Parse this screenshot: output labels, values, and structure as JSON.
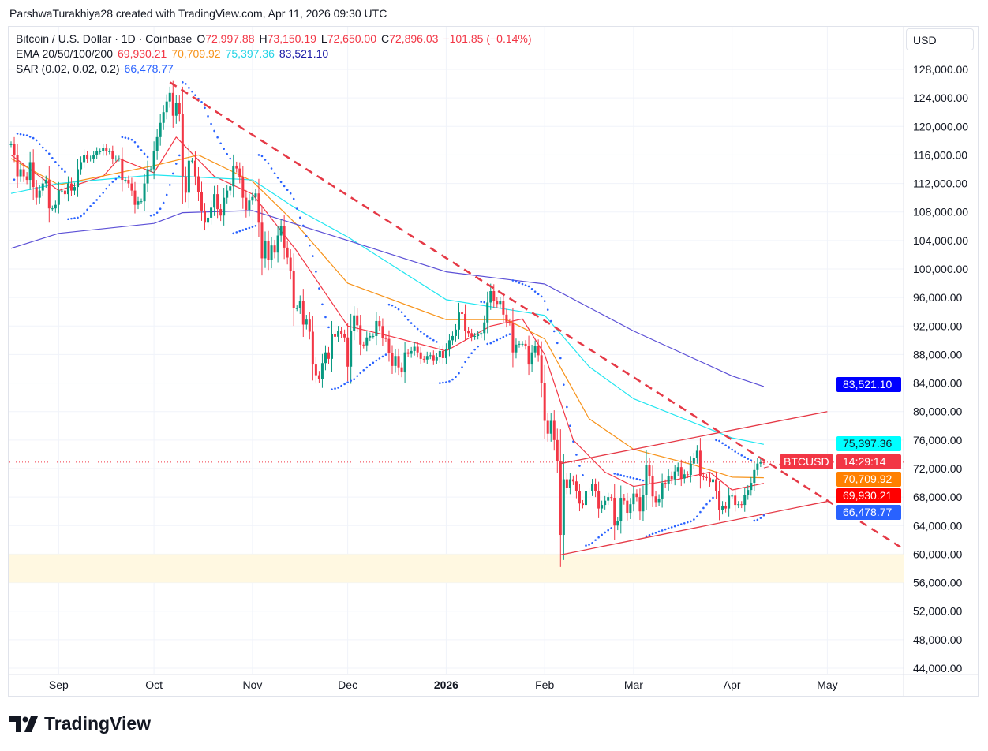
{
  "credit": "ParshwaTurakhiya28 created with TradingView.com, Apr 11, 2026 09:30 UTC",
  "symbol": {
    "title": "Bitcoin / U.S. Dollar · 1D · Coinbase",
    "o_label": "O",
    "open": "72,997.88",
    "h_label": "H",
    "high": "73,150.19",
    "l_label": "L",
    "low": "72,650.00",
    "c_label": "C",
    "close": "72,896.03",
    "change": "−101.85 (−0.14%)"
  },
  "ema": {
    "label": "EMA 20/50/100/200",
    "v20": "69,930.21",
    "v50": "70,709.92",
    "v100": "75,397.36",
    "v200": "83,521.10"
  },
  "sar": {
    "label": "SAR (0.02, 0.02, 0.2)",
    "value": "66,478.77"
  },
  "currency": "USD",
  "price_tags": {
    "ema200": "83,521.10",
    "ema100": "75,397.36",
    "ticker": "BTCUSD",
    "countdown": "14:29:14",
    "ema50": "70,709.92",
    "ema20": "69,930.21",
    "sar": "66,478.77"
  },
  "logo_text": "TradingView",
  "colors": {
    "up": "#089981",
    "down": "#f23645",
    "ema20": "#f23645",
    "ema50": "#f7931a",
    "ema100": "#22e6f0",
    "ema200": "#5b4fd6",
    "sar": "#2962ff",
    "trendline": "#e53946",
    "zone": "#fff8e1"
  },
  "chart_data": {
    "type": "candlestick",
    "y_ticks": [
      "128,000.00",
      "124,000.00",
      "120,000.00",
      "116,000.00",
      "112,000.00",
      "108,000.00",
      "104,000.00",
      "100,000.00",
      "96,000.00",
      "92,000.00",
      "88,000.00",
      "84,000.00",
      "80,000.00",
      "76,000.00",
      "72,000.00",
      "68,000.00",
      "64,000.00",
      "60,000.00",
      "56,000.00",
      "52,000.00",
      "48,000.00",
      "44,000.00"
    ],
    "y_tick_values": [
      128000,
      124000,
      120000,
      116000,
      112000,
      108000,
      104000,
      100000,
      96000,
      92000,
      88000,
      84000,
      80000,
      76000,
      72000,
      68000,
      64000,
      60000,
      56000,
      52000,
      48000,
      44000
    ],
    "ylim": [
      43000,
      131000
    ],
    "x_ticks": [
      {
        "label": "Sep",
        "date": "2025-09-01"
      },
      {
        "label": "Oct",
        "date": "2025-10-01"
      },
      {
        "label": "Nov",
        "date": "2025-11-01"
      },
      {
        "label": "Dec",
        "date": "2025-12-01"
      },
      {
        "label": "2026",
        "date": "2026-01-01",
        "bold": true
      },
      {
        "label": "Feb",
        "date": "2026-02-01"
      },
      {
        "label": "Mar",
        "date": "2026-03-01"
      },
      {
        "label": "Apr",
        "date": "2026-04-01"
      },
      {
        "label": "May",
        "date": "2026-05-01"
      }
    ],
    "xlim": [
      "2025-08-17",
      "2026-05-25"
    ],
    "grid": true,
    "last_price": 72896.03,
    "daily_closes_thousands": [
      {
        "month": "2025-08",
        "first_day": 17,
        "closes": [
          117.5,
          116,
          113,
          114,
          113,
          112.5,
          115,
          111.5,
          110,
          111,
          112,
          112.5,
          108.5,
          108.5,
          109
        ]
      },
      {
        "month": "2025-09",
        "first_day": 1,
        "closes": [
          111,
          111,
          110.5,
          112,
          111,
          111.5,
          114,
          115,
          116,
          115.5,
          115.5,
          116,
          116.5,
          116.5,
          117,
          116.5,
          116.5,
          115.5,
          115.5,
          115.5,
          112.5,
          112.5,
          112,
          111,
          109,
          109.5,
          109.5,
          112,
          114,
          114
        ]
      },
      {
        "month": "2025-10",
        "first_day": 1,
        "closes": [
          116.5,
          118.5,
          120.5,
          122,
          123.5,
          124.7,
          121.5,
          123.3,
          121.7,
          113,
          110.7,
          115.2,
          115.2,
          113,
          110.8,
          108.2,
          106.5,
          107.2,
          108.6,
          110.5,
          108.4,
          107.5,
          110,
          111,
          111.6,
          114.5,
          114.1,
          112.9,
          110,
          108.3,
          109.6
        ]
      },
      {
        "month": "2025-11",
        "first_day": 1,
        "closes": [
          110.1,
          110.6,
          106.5,
          101.5,
          103.9,
          101.3,
          103.3,
          102.3,
          104.7,
          106,
          103,
          101.6,
          99.7,
          94.5,
          94.5,
          95.5,
          92.2,
          92.9,
          91.2,
          86.6,
          85.1,
          84.6,
          86.8,
          88.3,
          87.4,
          90.9,
          90.5,
          91.3,
          90.9,
          90.4
        ]
      },
      {
        "month": "2025-12",
        "first_day": 1,
        "closes": [
          86.3,
          91.3,
          93.5,
          92.1,
          89.4,
          89.3,
          90.4,
          90.6,
          90.6,
          92.7,
          92,
          90.3,
          90.2,
          88.2,
          86.4,
          87.8,
          86.2,
          85.5,
          88.3,
          88.1,
          88.5,
          89.1,
          88.3,
          87.4,
          87.3,
          87.8,
          87.9,
          87.2,
          87.6,
          88.5,
          87.5
        ]
      },
      {
        "month": "2026-01",
        "first_day": 1,
        "closes": [
          88.7,
          90,
          90.6,
          91.5,
          93.9,
          93.7,
          91.3,
          91,
          90.5,
          90.6,
          90.8,
          91,
          92.5,
          95.3,
          96.9,
          95.5,
          95.1,
          95.5,
          93.6,
          92.6,
          92.5,
          88.3,
          89.4,
          89.5,
          89.5,
          89.2,
          86.6,
          88.3,
          89.2,
          87.9,
          84
        ]
      },
      {
        "month": "2026-02",
        "first_day": 1,
        "closes": [
          78.7,
          76.9,
          78.7,
          76,
          73,
          62.7,
          70.5,
          69.3,
          70.5,
          70.2,
          68.8,
          67.1,
          66.9,
          68.8,
          68.9,
          69.8,
          68.8,
          66.4,
          66.9,
          67.5,
          68,
          67.9,
          64,
          64.6,
          67.9,
          67.5,
          65.8,
          67
        ]
      },
      {
        "month": "2026-03",
        "first_day": 1,
        "closes": [
          68.5,
          68,
          66,
          68.3,
          72.5,
          70.9,
          68.1,
          67.3,
          67.8,
          70,
          69.8,
          71,
          70.5,
          71.6,
          72.2,
          70.6,
          71.2,
          71.1,
          72.7,
          73.5,
          74.5,
          71,
          70.8,
          70.7,
          70.1,
          70.5,
          68.8,
          66.2,
          66.8,
          66.4,
          68.2
        ]
      },
      {
        "month": "2026-04",
        "first_day": 1,
        "closes": [
          68.2,
          66.9,
          67,
          66.9,
          68.3,
          69,
          70,
          71.8,
          72.7,
          72.9,
          72.896
        ]
      }
    ],
    "ema_series_thousands": {
      "ema20": [
        [
          "2025-08-17",
          116
        ],
        [
          "2025-09-01",
          111
        ],
        [
          "2025-09-15",
          113
        ],
        [
          "2025-09-20",
          115.5
        ],
        [
          "2025-10-01",
          113.5
        ],
        [
          "2025-10-08",
          118.5
        ],
        [
          "2025-10-20",
          113
        ],
        [
          "2025-11-01",
          110.5
        ],
        [
          "2025-11-15",
          102.5
        ],
        [
          "2025-12-01",
          92
        ],
        [
          "2025-12-15",
          90.5
        ],
        [
          "2026-01-01",
          88.5
        ],
        [
          "2026-01-15",
          92
        ],
        [
          "2026-01-25",
          93
        ],
        [
          "2026-02-01",
          88
        ],
        [
          "2026-02-10",
          76
        ],
        [
          "2026-02-20",
          71.5
        ],
        [
          "2026-03-01",
          69.5
        ],
        [
          "2026-03-15",
          70.5
        ],
        [
          "2026-03-25",
          71.5
        ],
        [
          "2026-04-01",
          69
        ],
        [
          "2026-04-11",
          69.93
        ]
      ],
      "ema50": [
        [
          "2025-08-17",
          115.5
        ],
        [
          "2025-09-01",
          111.8
        ],
        [
          "2025-10-01",
          114.5
        ],
        [
          "2025-10-15",
          116
        ],
        [
          "2025-11-01",
          112.3
        ],
        [
          "2025-11-15",
          106.2
        ],
        [
          "2025-12-01",
          98
        ],
        [
          "2025-12-15",
          95.7
        ],
        [
          "2026-01-01",
          92.9
        ],
        [
          "2026-01-20",
          92.9
        ],
        [
          "2026-02-01",
          90.2
        ],
        [
          "2026-02-15",
          79
        ],
        [
          "2026-03-01",
          74.7
        ],
        [
          "2026-03-20",
          72.5
        ],
        [
          "2026-04-01",
          70.8
        ],
        [
          "2026-04-11",
          70.71
        ]
      ],
      "ema100": [
        [
          "2025-08-17",
          110.6
        ],
        [
          "2025-09-01",
          112
        ],
        [
          "2025-10-01",
          113.2
        ],
        [
          "2025-11-01",
          112.5
        ],
        [
          "2025-11-15",
          108.4
        ],
        [
          "2025-12-01",
          104.5
        ],
        [
          "2026-01-01",
          95.7
        ],
        [
          "2026-02-01",
          93.5
        ],
        [
          "2026-02-15",
          86.3
        ],
        [
          "2026-03-01",
          81.8
        ],
        [
          "2026-04-01",
          76.3
        ],
        [
          "2026-04-11",
          75.4
        ]
      ],
      "ema200": [
        [
          "2025-08-17",
          102.9
        ],
        [
          "2025-09-01",
          105
        ],
        [
          "2025-10-01",
          106.4
        ],
        [
          "2025-10-10",
          107.9
        ],
        [
          "2025-11-01",
          108.2
        ],
        [
          "2025-12-01",
          104
        ],
        [
          "2026-01-01",
          99.6
        ],
        [
          "2026-02-01",
          97.9
        ],
        [
          "2026-03-01",
          91.3
        ],
        [
          "2026-04-01",
          85
        ],
        [
          "2026-04-11",
          83.52
        ]
      ]
    },
    "drawings": {
      "downtrend_line": [
        [
          "2025-10-06",
          126.2
        ],
        [
          "2026-05-24",
          61
        ]
      ],
      "channel_upper": [
        [
          "2026-02-06",
          72.7
        ],
        [
          "2026-05-01",
          80
        ]
      ],
      "channel_lower": [
        [
          "2026-02-06",
          59.9
        ],
        [
          "2026-05-01",
          67.4
        ]
      ],
      "channel_mid_extension": [
        [
          "2026-04-11",
          72.1
        ],
        [
          "2026-04-27",
          73.8
        ]
      ],
      "support_zone": [
        56,
        60
      ]
    }
  }
}
